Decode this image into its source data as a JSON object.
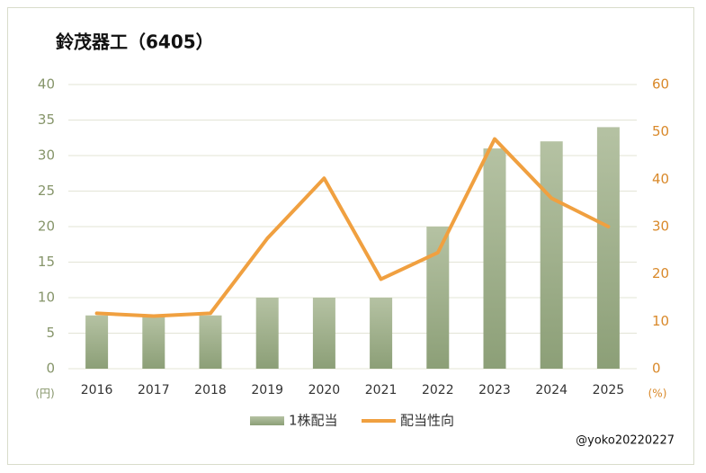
{
  "chart_data": {
    "type": "bar",
    "title": "鈴茂器工（6405）",
    "categories": [
      "2016",
      "2017",
      "2018",
      "2019",
      "2020",
      "2021",
      "2022",
      "2023",
      "2024",
      "2025"
    ],
    "series": [
      {
        "name": "1株配当",
        "type": "bar",
        "color": "#9aab84",
        "values": [
          7.5,
          7.5,
          7.5,
          10,
          10,
          10,
          20,
          31,
          32,
          34
        ]
      },
      {
        "name": "配当性向",
        "type": "line",
        "axis": "y2",
        "color": "#f0a040",
        "values": [
          11.7,
          11.1,
          11.7,
          27.5,
          40.2,
          18.9,
          24.5,
          48.5,
          36,
          30
        ]
      }
    ],
    "ylim": [
      0,
      40
    ],
    "yticks": [
      0,
      5,
      10,
      15,
      20,
      25,
      30,
      35,
      40
    ],
    "y2lim": [
      0,
      60
    ],
    "y2ticks": [
      0,
      10,
      20,
      30,
      40,
      50,
      60
    ],
    "y_unit": "(円)",
    "y2_unit": "(%)",
    "grid": true,
    "legend": "bottom",
    "credit": "@yoko20220227"
  }
}
